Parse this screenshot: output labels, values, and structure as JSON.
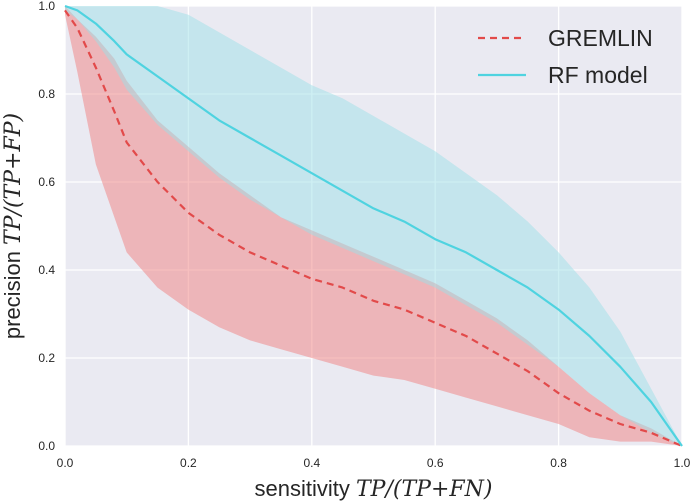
{
  "chart_data": {
    "type": "line",
    "xlabel": "sensitivity",
    "xlabel_math": "TP/(TP+FN)",
    "ylabel": "precision",
    "ylabel_math": "TP/(TP+FP)",
    "xlim": [
      0,
      1
    ],
    "ylim": [
      0,
      1
    ],
    "xticks": [
      "0.0",
      "0.2",
      "0.4",
      "0.6",
      "0.8",
      "1.0"
    ],
    "yticks": [
      "0.0",
      "0.2",
      "0.4",
      "0.6",
      "0.8",
      "1.0"
    ],
    "grid": true,
    "background": "#eaeaf2",
    "legend_position": "top-right",
    "series": [
      {
        "name": "GREMLIN",
        "style": "dashed",
        "color": "#e24a4a",
        "band_color": "#f08080",
        "x": [
          0.0,
          0.02,
          0.05,
          0.08,
          0.1,
          0.15,
          0.2,
          0.25,
          0.3,
          0.35,
          0.4,
          0.45,
          0.5,
          0.55,
          0.6,
          0.65,
          0.7,
          0.75,
          0.8,
          0.85,
          0.9,
          0.95,
          1.0
        ],
        "y": [
          0.99,
          0.95,
          0.86,
          0.76,
          0.69,
          0.6,
          0.53,
          0.48,
          0.44,
          0.41,
          0.38,
          0.36,
          0.33,
          0.31,
          0.28,
          0.25,
          0.21,
          0.17,
          0.12,
          0.08,
          0.05,
          0.03,
          0.0
        ],
        "lower": [
          0.98,
          0.85,
          0.64,
          0.52,
          0.44,
          0.36,
          0.31,
          0.27,
          0.24,
          0.22,
          0.2,
          0.18,
          0.16,
          0.15,
          0.13,
          0.11,
          0.09,
          0.07,
          0.05,
          0.02,
          0.01,
          0.01,
          0.0
        ],
        "upper": [
          1.0,
          0.97,
          0.93,
          0.88,
          0.83,
          0.74,
          0.68,
          0.62,
          0.57,
          0.52,
          0.49,
          0.46,
          0.43,
          0.4,
          0.37,
          0.33,
          0.29,
          0.24,
          0.18,
          0.12,
          0.07,
          0.04,
          0.0
        ]
      },
      {
        "name": "RF model",
        "style": "solid",
        "color": "#4fd3e0",
        "band_color": "#9ee0e8",
        "x": [
          0.0,
          0.02,
          0.05,
          0.08,
          0.1,
          0.15,
          0.2,
          0.25,
          0.3,
          0.35,
          0.4,
          0.45,
          0.5,
          0.55,
          0.6,
          0.65,
          0.7,
          0.75,
          0.8,
          0.85,
          0.9,
          0.95,
          1.0
        ],
        "y": [
          1.0,
          0.99,
          0.96,
          0.92,
          0.89,
          0.84,
          0.79,
          0.74,
          0.7,
          0.66,
          0.62,
          0.58,
          0.54,
          0.51,
          0.47,
          0.44,
          0.4,
          0.36,
          0.31,
          0.25,
          0.18,
          0.1,
          0.0
        ],
        "lower": [
          0.99,
          0.97,
          0.92,
          0.86,
          0.81,
          0.73,
          0.67,
          0.61,
          0.56,
          0.52,
          0.48,
          0.45,
          0.42,
          0.39,
          0.36,
          0.32,
          0.28,
          0.23,
          0.18,
          0.12,
          0.07,
          0.03,
          0.0
        ],
        "upper": [
          1.0,
          1.0,
          1.0,
          1.0,
          1.0,
          1.0,
          0.98,
          0.94,
          0.9,
          0.86,
          0.82,
          0.79,
          0.75,
          0.71,
          0.67,
          0.62,
          0.57,
          0.51,
          0.44,
          0.36,
          0.26,
          0.13,
          0.0
        ]
      }
    ]
  }
}
